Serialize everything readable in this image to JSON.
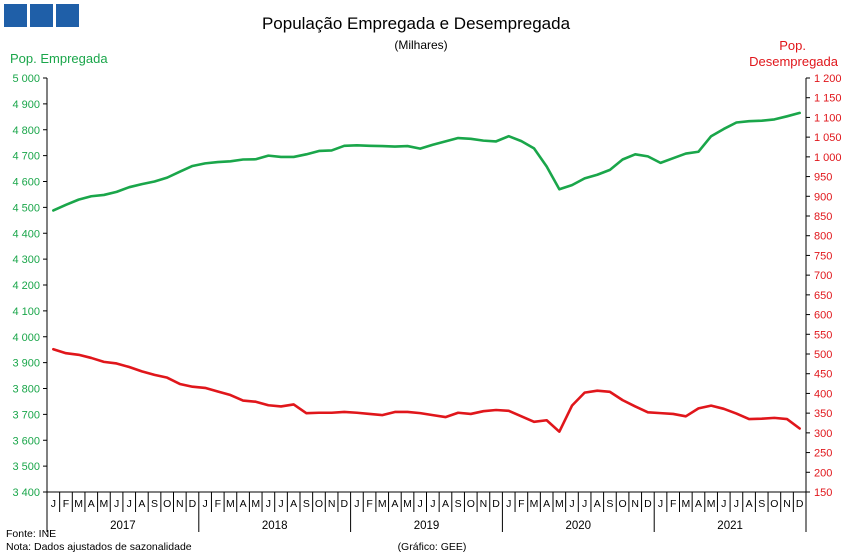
{
  "logo": {
    "name": "gee-logo-squares",
    "color": "#1f5fa8"
  },
  "header": {
    "title": "População Empregada e Desempregada",
    "subtitle": "(Milhares)"
  },
  "footer": {
    "source": "Fonte: INE",
    "note": "Nota: Dados ajustados de sazonalidade",
    "credit": "(Gráfico: GEE)"
  },
  "chart_data": {
    "type": "line",
    "title": "População Empregada e Desempregada",
    "subtitle": "(Milhares)",
    "x_month_labels": [
      "J",
      "F",
      "M",
      "A",
      "M",
      "J",
      "J",
      "A",
      "S",
      "O",
      "N",
      "D"
    ],
    "years": [
      "2017",
      "2018",
      "2019",
      "2020",
      "2021"
    ],
    "axes": {
      "left": {
        "label": "Pop. Empregada",
        "min": 3400,
        "max": 5000,
        "step": 100,
        "color": "#1aa64a"
      },
      "right": {
        "label_line1": "Pop.",
        "label_line2": "Desempregada",
        "min": 150,
        "max": 1200,
        "step": 50,
        "color": "#e0161b"
      }
    },
    "tick_labels_left": [
      "3 400",
      "3 500",
      "3 600",
      "3 700",
      "3 800",
      "3 900",
      "4 000",
      "4 100",
      "4 200",
      "4 300",
      "4 400",
      "4 500",
      "4 600",
      "4 700",
      "4 800",
      "4 900",
      "5 000"
    ],
    "tick_labels_right": [
      "150",
      "200",
      "250",
      "300",
      "350",
      "400",
      "450",
      "500",
      "550",
      "600",
      "650",
      "700",
      "750",
      "800",
      "850",
      "900",
      "950",
      "1 000",
      "1 050",
      "1 100",
      "1 150",
      "1 200"
    ],
    "grid": false,
    "series": [
      {
        "name": "Pop. Empregada",
        "axis": "left",
        "color": "#1aa64a",
        "values": [
          4488,
          4510,
          4530,
          4543,
          4548,
          4560,
          4578,
          4590,
          4600,
          4615,
          4638,
          4660,
          4670,
          4675,
          4678,
          4685,
          4686,
          4700,
          4695,
          4695,
          4705,
          4718,
          4720,
          4738,
          4740,
          4738,
          4737,
          4735,
          4737,
          4727,
          4742,
          4755,
          4768,
          4765,
          4758,
          4755,
          4775,
          4756,
          4728,
          4658,
          4570,
          4586,
          4612,
          4626,
          4645,
          4685,
          4705,
          4697,
          4672,
          4690,
          4708,
          4715,
          4775,
          4803,
          4828,
          4833,
          4835,
          4840,
          4852,
          4865
        ]
      },
      {
        "name": "Pop. Desempregada",
        "axis": "right",
        "color": "#e0161b",
        "values": [
          512,
          502,
          498,
          490,
          480,
          476,
          467,
          456,
          447,
          440,
          424,
          417,
          414,
          405,
          396,
          382,
          379,
          370,
          367,
          372,
          350,
          351,
          351,
          353,
          351,
          348,
          345,
          353,
          353,
          350,
          345,
          340,
          351,
          348,
          355,
          358,
          356,
          342,
          328,
          332,
          303,
          369,
          402,
          407,
          404,
          383,
          367,
          352,
          350,
          348,
          342,
          362,
          369,
          361,
          349,
          335,
          336,
          338,
          335,
          311
        ]
      }
    ]
  }
}
